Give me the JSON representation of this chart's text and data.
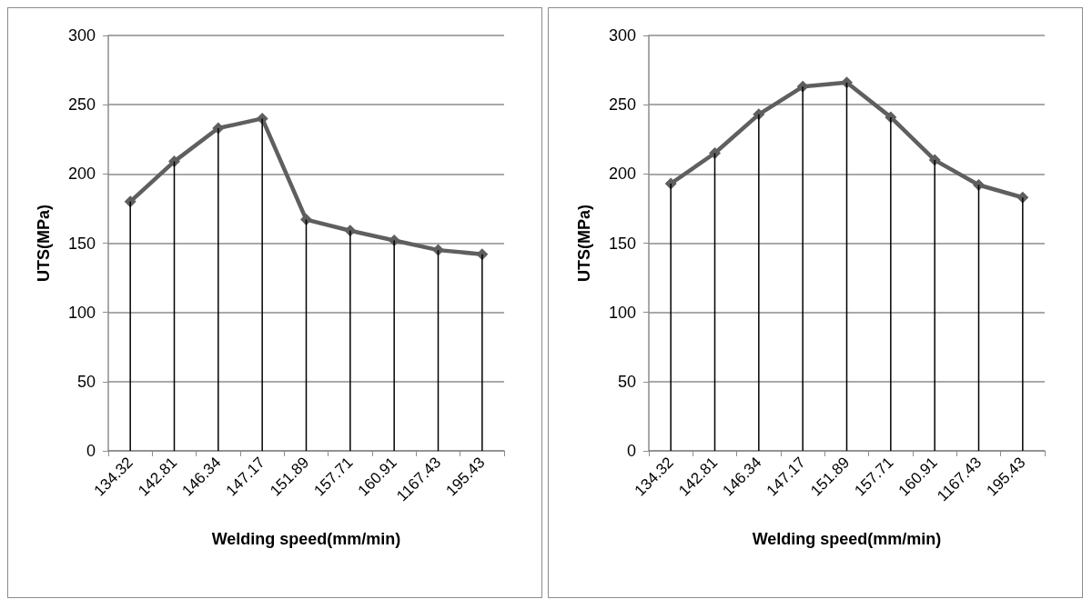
{
  "chart_data": [
    {
      "type": "line",
      "xlabel": "Welding speed(mm/min)",
      "ylabel": "UTS(MPa)",
      "categories": [
        "134.32",
        "142.81",
        "146.34",
        "147.17",
        "151.89",
        "157.71",
        "160.91",
        "1167.43",
        "195.43"
      ],
      "series": [
        {
          "type": "bar",
          "color": "#000000",
          "values": [
            180,
            209,
            233,
            240,
            167,
            159,
            152,
            145,
            142
          ]
        },
        {
          "color": "#5f5f5f",
          "values": [
            180,
            209,
            233,
            240,
            167,
            159,
            152,
            145,
            142
          ]
        }
      ],
      "ylim": [
        0,
        300
      ],
      "yticks": [
        0,
        50,
        100,
        150,
        200,
        250,
        300
      ],
      "grid": "y",
      "marker": "diamond",
      "line_style": "solid"
    },
    {
      "type": "line",
      "xlabel": "Welding speed(mm/min)",
      "ylabel": "UTS(MPa)",
      "categories": [
        "134.32",
        "142.81",
        "146.34",
        "147.17",
        "151.89",
        "157.71",
        "160.91",
        "1167.43",
        "195.43"
      ],
      "series": [
        {
          "type": "bar",
          "color": "#000000",
          "values": [
            193,
            215,
            243,
            263,
            266,
            241,
            210,
            192,
            183
          ]
        },
        {
          "color": "#5f5f5f",
          "values": [
            193,
            215,
            243,
            263,
            266,
            241,
            210,
            192,
            183
          ]
        }
      ],
      "ylim": [
        0,
        300
      ],
      "yticks": [
        0,
        50,
        100,
        150,
        200,
        250,
        300
      ],
      "grid": "y",
      "marker": "diamond",
      "line_style": "solid"
    }
  ]
}
